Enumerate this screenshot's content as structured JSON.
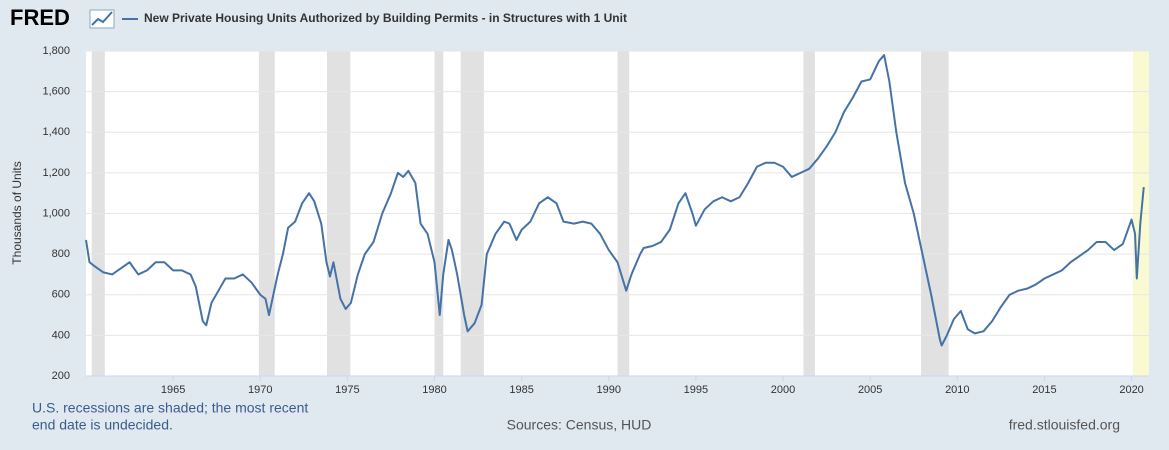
{
  "chart_data": {
    "type": "line",
    "logo": "FRED",
    "title": "New Private Housing Units Authorized by Building Permits - in Structures with 1 Unit",
    "y_axis_label": "Thousands of Units",
    "note_lines": [
      "U.S. recessions are shaded; the most recent",
      "end date is undecided."
    ],
    "source": "Sources: Census, HUD",
    "site": "fred.stlouisfed.org",
    "series": [
      {
        "name": "New Private Housing Units Authorized by Building Permits - in Structures with 1 Unit",
        "color": "#4572a7",
        "x": [
          1960.0,
          1960.2,
          1960.5,
          1961,
          1961.5,
          1962,
          1962.5,
          1963,
          1963.5,
          1964,
          1964.5,
          1965,
          1965.5,
          1966,
          1966.3,
          1966.7,
          1966.9,
          1967.2,
          1967.6,
          1968,
          1968.5,
          1969,
          1969.5,
          1970,
          1970.3,
          1970.5,
          1970.8,
          1971,
          1971.3,
          1971.6,
          1972,
          1972.4,
          1972.8,
          1973.1,
          1973.5,
          1973.8,
          1974,
          1974.2,
          1974.6,
          1974.9,
          1975.2,
          1975.6,
          1976,
          1976.5,
          1977,
          1977.5,
          1977.9,
          1978.2,
          1978.5,
          1978.9,
          1979.2,
          1979.6,
          1980,
          1980.3,
          1980.5,
          1980.8,
          1981,
          1981.3,
          1981.7,
          1981.9,
          1982.3,
          1982.7,
          1983,
          1983.5,
          1984,
          1984.3,
          1984.7,
          1985,
          1985.5,
          1986,
          1986.5,
          1987,
          1987.4,
          1988,
          1988.5,
          1989,
          1989.5,
          1990,
          1990.5,
          1991,
          1991.3,
          1991.8,
          1992,
          1992.5,
          1993,
          1993.5,
          1994,
          1994.4,
          1994.8,
          1995,
          1995.5,
          1996,
          1996.5,
          1997,
          1997.5,
          1998,
          1998.5,
          1999,
          1999.5,
          2000,
          2000.5,
          2001,
          2001.5,
          2002,
          2002.5,
          2003,
          2003.5,
          2004,
          2004.5,
          2005,
          2005.5,
          2005.8,
          2006.1,
          2006.5,
          2007,
          2007.5,
          2008,
          2008.5,
          2009,
          2009.1,
          2009.4,
          2009.8,
          2010.2,
          2010.6,
          2011,
          2011.5,
          2012,
          2012.5,
          2013,
          2013.5,
          2014,
          2014.5,
          2015,
          2015.5,
          2016,
          2016.5,
          2017,
          2017.5,
          2018,
          2018.5,
          2019,
          2019.5,
          2020,
          2020.2,
          2020.3,
          2020.5,
          2020.7
        ],
        "values": [
          870,
          760,
          740,
          710,
          700,
          730,
          760,
          700,
          720,
          760,
          760,
          720,
          720,
          700,
          640,
          470,
          450,
          560,
          620,
          680,
          680,
          700,
          660,
          600,
          580,
          500,
          620,
          700,
          800,
          930,
          960,
          1050,
          1100,
          1060,
          950,
          760,
          690,
          760,
          580,
          530,
          560,
          700,
          800,
          860,
          1000,
          1100,
          1200,
          1180,
          1210,
          1150,
          950,
          900,
          760,
          500,
          700,
          870,
          820,
          700,
          500,
          420,
          460,
          550,
          800,
          900,
          960,
          950,
          870,
          920,
          960,
          1050,
          1080,
          1050,
          960,
          950,
          960,
          950,
          900,
          820,
          760,
          620,
          700,
          800,
          830,
          840,
          860,
          920,
          1050,
          1100,
          1000,
          940,
          1020,
          1060,
          1080,
          1060,
          1080,
          1150,
          1230,
          1250,
          1250,
          1230,
          1180,
          1200,
          1220,
          1270,
          1330,
          1400,
          1500,
          1570,
          1650,
          1660,
          1750,
          1780,
          1650,
          1400,
          1150,
          1000,
          800,
          600,
          380,
          350,
          400,
          480,
          520,
          430,
          410,
          420,
          470,
          540,
          600,
          620,
          630,
          650,
          680,
          700,
          720,
          760,
          790,
          820,
          860,
          860,
          820,
          850,
          970,
          900,
          680,
          950,
          1130
        ]
      }
    ],
    "recessions": [
      [
        1960.33,
        1961.08
      ],
      [
        1969.92,
        1970.83
      ],
      [
        1973.83,
        1975.17
      ],
      [
        1980.0,
        1980.5
      ],
      [
        1981.5,
        1982.83
      ],
      [
        1990.5,
        1991.17
      ],
      [
        2001.17,
        2001.83
      ],
      [
        2007.92,
        2009.5
      ]
    ],
    "recession_color": "#e1e1e1",
    "current_recession_start": 2020.08,
    "current_recession_color": "#fafad2",
    "xlim": [
      1960,
      2021
    ],
    "xticks": [
      1965,
      1970,
      1975,
      1980,
      1985,
      1990,
      1995,
      2000,
      2005,
      2010,
      2015,
      2020
    ],
    "ylim": [
      200,
      1800
    ],
    "yticks": [
      200,
      400,
      600,
      800,
      {
        "value": 1000,
        "label": "1,000"
      },
      {
        "value": 1200,
        "label": "1,200"
      },
      {
        "value": 1400,
        "label": "1,400"
      },
      {
        "value": 1600,
        "label": "1,600"
      },
      {
        "value": 1800,
        "label": "1,800"
      }
    ],
    "grid": true
  }
}
